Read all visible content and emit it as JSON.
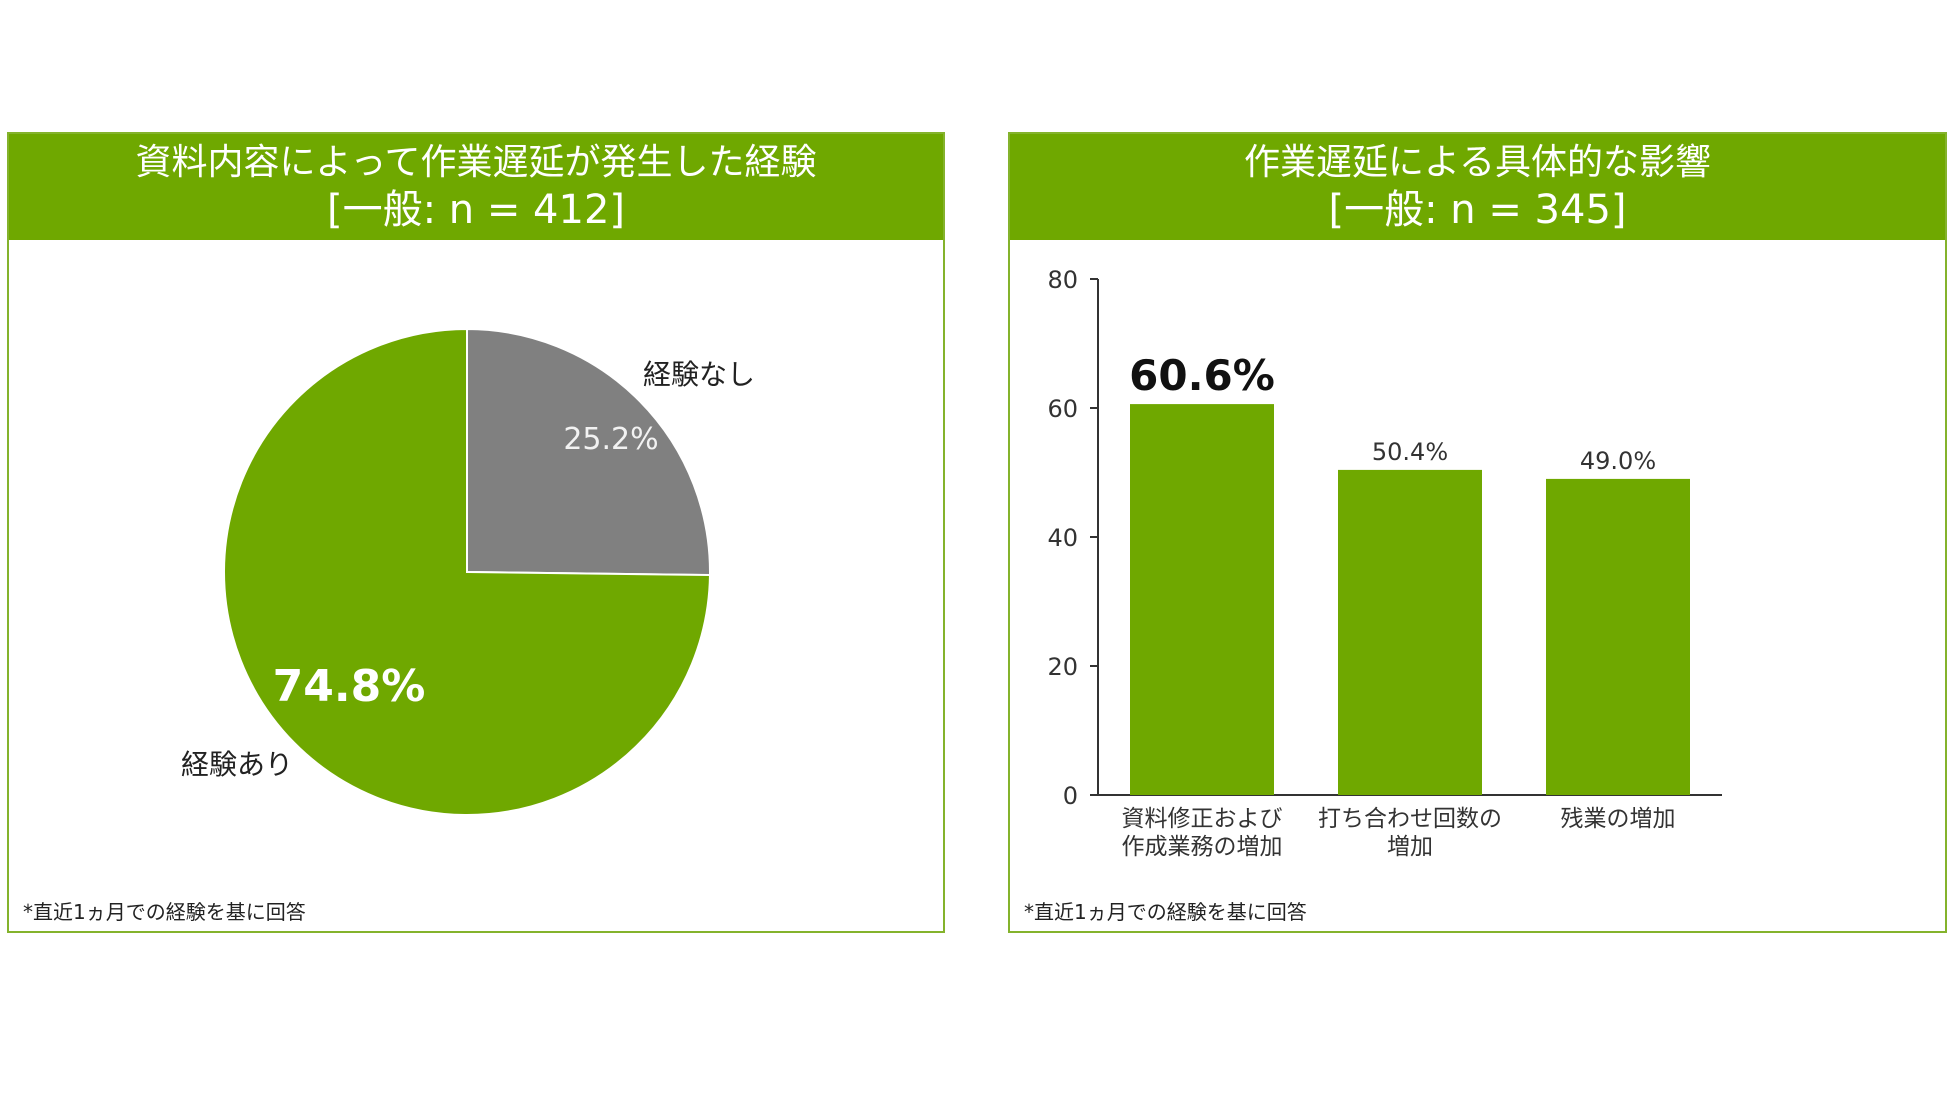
{
  "colors": {
    "accent": "#6fa800",
    "slice_yes": "#6fa800",
    "slice_no": "#808080",
    "header_text": "#ffffff",
    "axis": "#333333"
  },
  "panels": {
    "left": {
      "title_line1": "資料内容によって作業遅延が発生した経験",
      "title_line2": "[一般: n = 412]",
      "footnote": "*直近1ヵ月での経験を基に回答"
    },
    "right": {
      "title_line1": "作業遅延による具体的な影響",
      "title_line2": "[一般: n = 345]",
      "footnote": "*直近1ヵ月での経験を基に回答"
    }
  },
  "chart_data": [
    {
      "type": "pie",
      "title": "資料内容によって作業遅延が発生した経験",
      "subtitle": "[一般: n = 412]",
      "slices": [
        {
          "label": "経験なし",
          "value": 25.2,
          "value_label": "25.2%",
          "color": "#808080"
        },
        {
          "label": "経験あり",
          "value": 74.8,
          "value_label": "74.8%",
          "color": "#6fa800"
        }
      ]
    },
    {
      "type": "bar",
      "title": "作業遅延による具体的な影響",
      "subtitle": "[一般: n = 345]",
      "categories": [
        [
          "資料修正および",
          "作成業務の増加"
        ],
        [
          "打ち合わせ回数の",
          "増加"
        ],
        [
          "残業の増加"
        ]
      ],
      "values": [
        60.6,
        50.4,
        49.0
      ],
      "value_labels": [
        "60.6%",
        "50.4%",
        "49.0%"
      ],
      "ylim": [
        0,
        80
      ],
      "yticks": [
        0,
        20,
        40,
        60,
        80
      ],
      "xlabel": "",
      "ylabel": "",
      "grid": false,
      "bar_color": "#6fa800"
    }
  ]
}
